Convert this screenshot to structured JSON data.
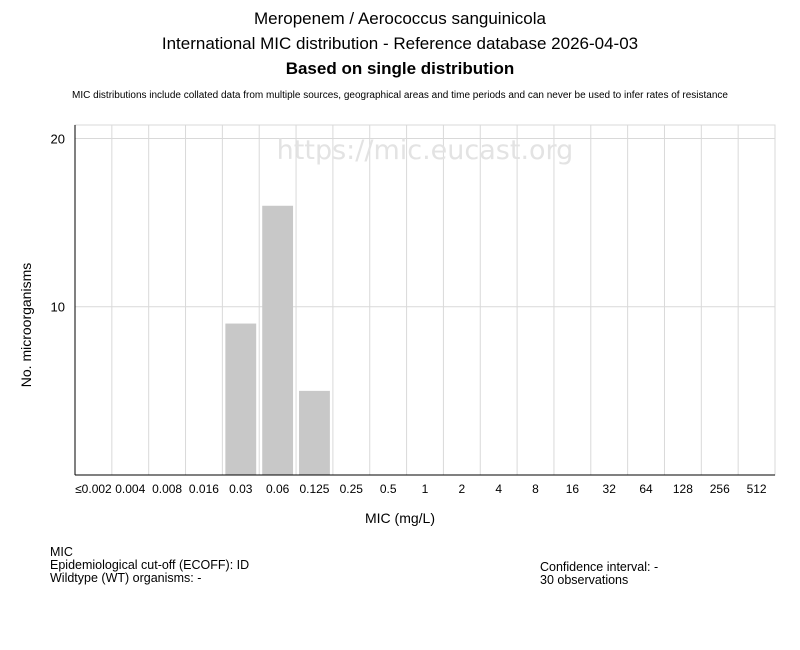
{
  "title": {
    "line1": "Meropenem / Aerococcus sanguinicola",
    "line2": "International MIC distribution - Reference database 2026-04-03",
    "line3": "Based on single distribution",
    "note": "MIC distributions include collated data from multiple sources, geographical areas and time periods and can never be used to infer rates of resistance"
  },
  "watermark": "https://mic.eucast.org",
  "chart_data": {
    "type": "bar",
    "categories": [
      "≤0.002",
      "0.004",
      "0.008",
      "0.016",
      "0.03",
      "0.06",
      "0.125",
      "0.25",
      "0.5",
      "1",
      "2",
      "4",
      "8",
      "16",
      "32",
      "64",
      "128",
      "256",
      "512"
    ],
    "values": [
      0,
      0,
      0,
      0,
      9,
      16,
      5,
      0,
      0,
      0,
      0,
      0,
      0,
      0,
      0,
      0,
      0,
      0,
      0
    ],
    "xlabel": "MIC (mg/L)",
    "ylabel": "No. microorganisms",
    "ylim": [
      0,
      20.8
    ],
    "yticks": [
      10,
      20
    ],
    "grid": true,
    "bar_color": "#c8c8c8"
  },
  "info": {
    "left": {
      "line1": "MIC",
      "line2": "Epidemiological cut-off (ECOFF): ID",
      "line3": "Wildtype (WT) organisms:  -"
    },
    "right": {
      "line1": "Confidence interval: -",
      "line2": "30 observations"
    }
  }
}
